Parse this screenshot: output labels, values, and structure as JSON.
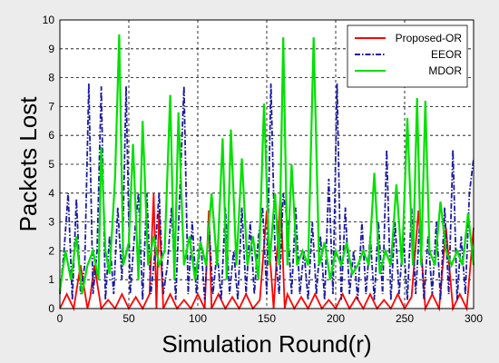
{
  "chart_data": {
    "type": "line",
    "title": "",
    "xlabel": "Simulation Round(r)",
    "ylabel": "Packets Lost",
    "xlim": [
      0,
      300
    ],
    "ylim": [
      0,
      10
    ],
    "xticks": [
      "0",
      "50",
      "100",
      "150",
      "200",
      "250",
      "300"
    ],
    "yticks": [
      "0",
      "1",
      "2",
      "3",
      "4",
      "5",
      "6",
      "7",
      "8",
      "9",
      "10"
    ],
    "grid": true,
    "legend_position": "top-right",
    "series": [
      {
        "name": "Proposed-OR",
        "color": "#ff0000",
        "style": "solid",
        "x": [
          0,
          5,
          10,
          15,
          20,
          22,
          25,
          30,
          35,
          40,
          45,
          50,
          55,
          60,
          65,
          68,
          70,
          72,
          75,
          80,
          85,
          90,
          95,
          100,
          105,
          108,
          110,
          115,
          120,
          125,
          130,
          135,
          140,
          145,
          150,
          155,
          160,
          163,
          165,
          170,
          175,
          180,
          185,
          190,
          195,
          200,
          205,
          210,
          215,
          220,
          225,
          230,
          235,
          240,
          245,
          250,
          255,
          260,
          265,
          270,
          275,
          280,
          285,
          290,
          295,
          300
        ],
        "values": [
          0,
          0.5,
          0,
          1.5,
          0,
          0.4,
          1.5,
          0,
          0.3,
          0,
          0.5,
          0,
          0.4,
          0,
          0.5,
          4,
          0,
          3.4,
          0,
          0.5,
          0,
          0.3,
          0,
          0.5,
          0,
          3.4,
          0,
          0.5,
          0,
          0.4,
          0,
          0.5,
          0,
          0.3,
          3.4,
          0,
          4,
          0,
          0.5,
          0,
          0.4,
          0,
          0.5,
          0,
          0.3,
          0,
          0.5,
          0,
          0.4,
          0,
          0.5,
          0,
          0.3,
          0,
          0.5,
          0,
          0.4,
          3.4,
          0,
          0.5,
          0,
          2.8,
          0,
          0.5,
          0,
          2.8
        ]
      },
      {
        "name": "EEOR",
        "color": "#1a1aa0",
        "style": "dashdot",
        "x": [
          0,
          3,
          6,
          9,
          12,
          15,
          18,
          21,
          24,
          27,
          30,
          33,
          36,
          39,
          42,
          45,
          48,
          51,
          54,
          57,
          60,
          63,
          66,
          69,
          72,
          75,
          78,
          81,
          84,
          87,
          90,
          93,
          96,
          99,
          102,
          105,
          108,
          111,
          114,
          117,
          120,
          123,
          126,
          129,
          132,
          135,
          138,
          141,
          144,
          147,
          150,
          153,
          156,
          159,
          162,
          165,
          168,
          171,
          174,
          177,
          180,
          183,
          186,
          189,
          192,
          195,
          198,
          201,
          204,
          207,
          210,
          213,
          216,
          219,
          222,
          225,
          228,
          231,
          234,
          237,
          240,
          243,
          246,
          249,
          252,
          255,
          258,
          261,
          264,
          267,
          270,
          273,
          276,
          279,
          282,
          285,
          288,
          291,
          294,
          297,
          300
        ],
        "values": [
          0.5,
          2,
          4,
          0.3,
          3.8,
          0.5,
          1.5,
          7.8,
          0.5,
          2,
          7.7,
          0.3,
          2.5,
          0.5,
          3.5,
          1,
          7.7,
          0.5,
          2.5,
          4,
          0.3,
          4,
          0.5,
          2,
          4,
          0.5,
          1.5,
          3.5,
          0.3,
          4,
          7.7,
          0.5,
          3,
          0.5,
          2.5,
          0.3,
          3,
          0.5,
          2,
          0.3,
          3.5,
          0.5,
          2,
          0.3,
          3.5,
          0.5,
          3,
          0.5,
          2.5,
          3.5,
          0.5,
          7.8,
          2,
          0.5,
          4,
          3,
          0.5,
          3.5,
          0.5,
          2,
          0.3,
          3,
          0.5,
          2.5,
          0.3,
          4.5,
          0.5,
          7.8,
          0.3,
          3.5,
          0.5,
          2,
          0.3,
          3,
          0.5,
          2.5,
          0.3,
          3,
          0.5,
          5.5,
          0.3,
          3,
          0.5,
          2.5,
          0.3,
          3.5,
          0.5,
          3,
          0.3,
          2.5,
          0.5,
          3,
          0.3,
          3.5,
          0.5,
          5.5,
          0.3,
          2.5,
          0.5,
          4,
          5.2
        ]
      },
      {
        "name": "MDOR",
        "color": "#00e000",
        "style": "solid",
        "x": [
          0,
          4,
          8,
          12,
          16,
          20,
          24,
          28,
          30,
          33,
          36,
          40,
          43,
          46,
          50,
          53,
          57,
          60,
          64,
          68,
          72,
          76,
          80,
          83,
          86,
          90,
          94,
          98,
          102,
          106,
          110,
          114,
          118,
          121,
          124,
          128,
          132,
          136,
          140,
          144,
          148,
          152,
          156,
          159,
          162,
          165,
          168,
          172,
          176,
          180,
          184,
          188,
          192,
          196,
          200,
          204,
          208,
          212,
          216,
          220,
          224,
          228,
          232,
          236,
          240,
          244,
          248,
          252,
          256,
          259,
          262,
          265,
          268,
          272,
          276,
          280,
          284,
          288,
          292,
          296,
          300
        ],
        "values": [
          0.6,
          2,
          1,
          2.5,
          0.5,
          1.5,
          2,
          1,
          5.6,
          2,
          1.2,
          4.5,
          9.5,
          1.5,
          2.3,
          5.7,
          1,
          6.5,
          1.5,
          2.5,
          1.5,
          2,
          7.4,
          1,
          6.8,
          1.5,
          2.5,
          1,
          2.3,
          1.5,
          4,
          1.5,
          5.9,
          1,
          6.2,
          1.5,
          5.2,
          1.5,
          2.5,
          1,
          7.1,
          1.5,
          4,
          1.5,
          9.4,
          1.5,
          5,
          1.5,
          2,
          1.5,
          9.4,
          1.5,
          2.3,
          1,
          2,
          1.5,
          2.3,
          1.2,
          1.5,
          2,
          1.5,
          4.7,
          1.2,
          2,
          1.5,
          4.3,
          1.5,
          6.6,
          1.5,
          7.3,
          1.5,
          7.2,
          2,
          1.5,
          3.7,
          2,
          1.5,
          2,
          1.5,
          3.3,
          1.5
        ]
      }
    ]
  }
}
